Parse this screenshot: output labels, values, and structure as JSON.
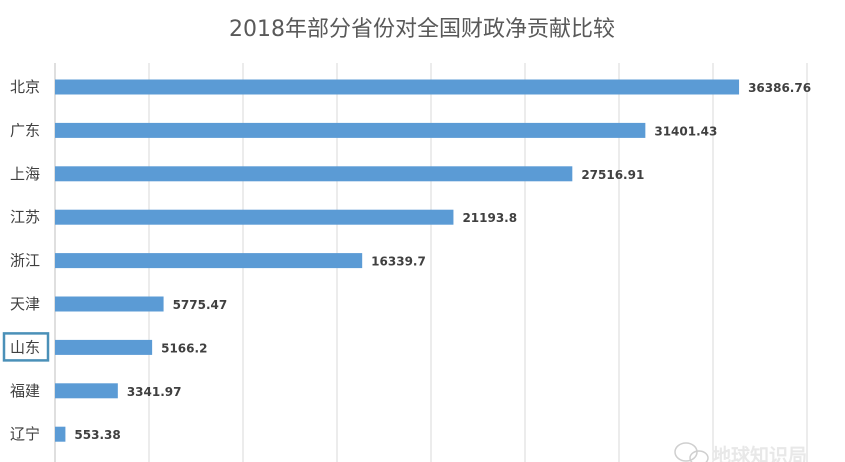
{
  "chart_data": {
    "type": "bar",
    "orientation": "horizontal",
    "title": "2018年部分省份对全国财政净贡献比较",
    "categories": [
      "北京",
      "广东",
      "上海",
      "江苏",
      "浙江",
      "天津",
      "山东",
      "福建",
      "辽宁"
    ],
    "values": [
      36386.76,
      31401.43,
      27516.91,
      21193.8,
      16339.7,
      5775.47,
      5166.2,
      3341.97,
      553.38
    ],
    "value_labels": [
      "36386.76",
      "31401.43",
      "27516.91",
      "21193.8",
      "16339.7",
      "5775.47",
      "5166.2",
      "3341.97",
      "553.38"
    ],
    "xlim": [
      0,
      40000
    ],
    "x_gridlines": [
      0,
      5000,
      10000,
      15000,
      20000,
      25000,
      30000,
      35000,
      40000
    ],
    "grid": true,
    "bar_color": "#5b9bd5",
    "highlighted_category": "山东",
    "highlight_color": "#4a90b8"
  },
  "watermark": {
    "text": "地球知识局",
    "icon": "wechat-icon"
  }
}
